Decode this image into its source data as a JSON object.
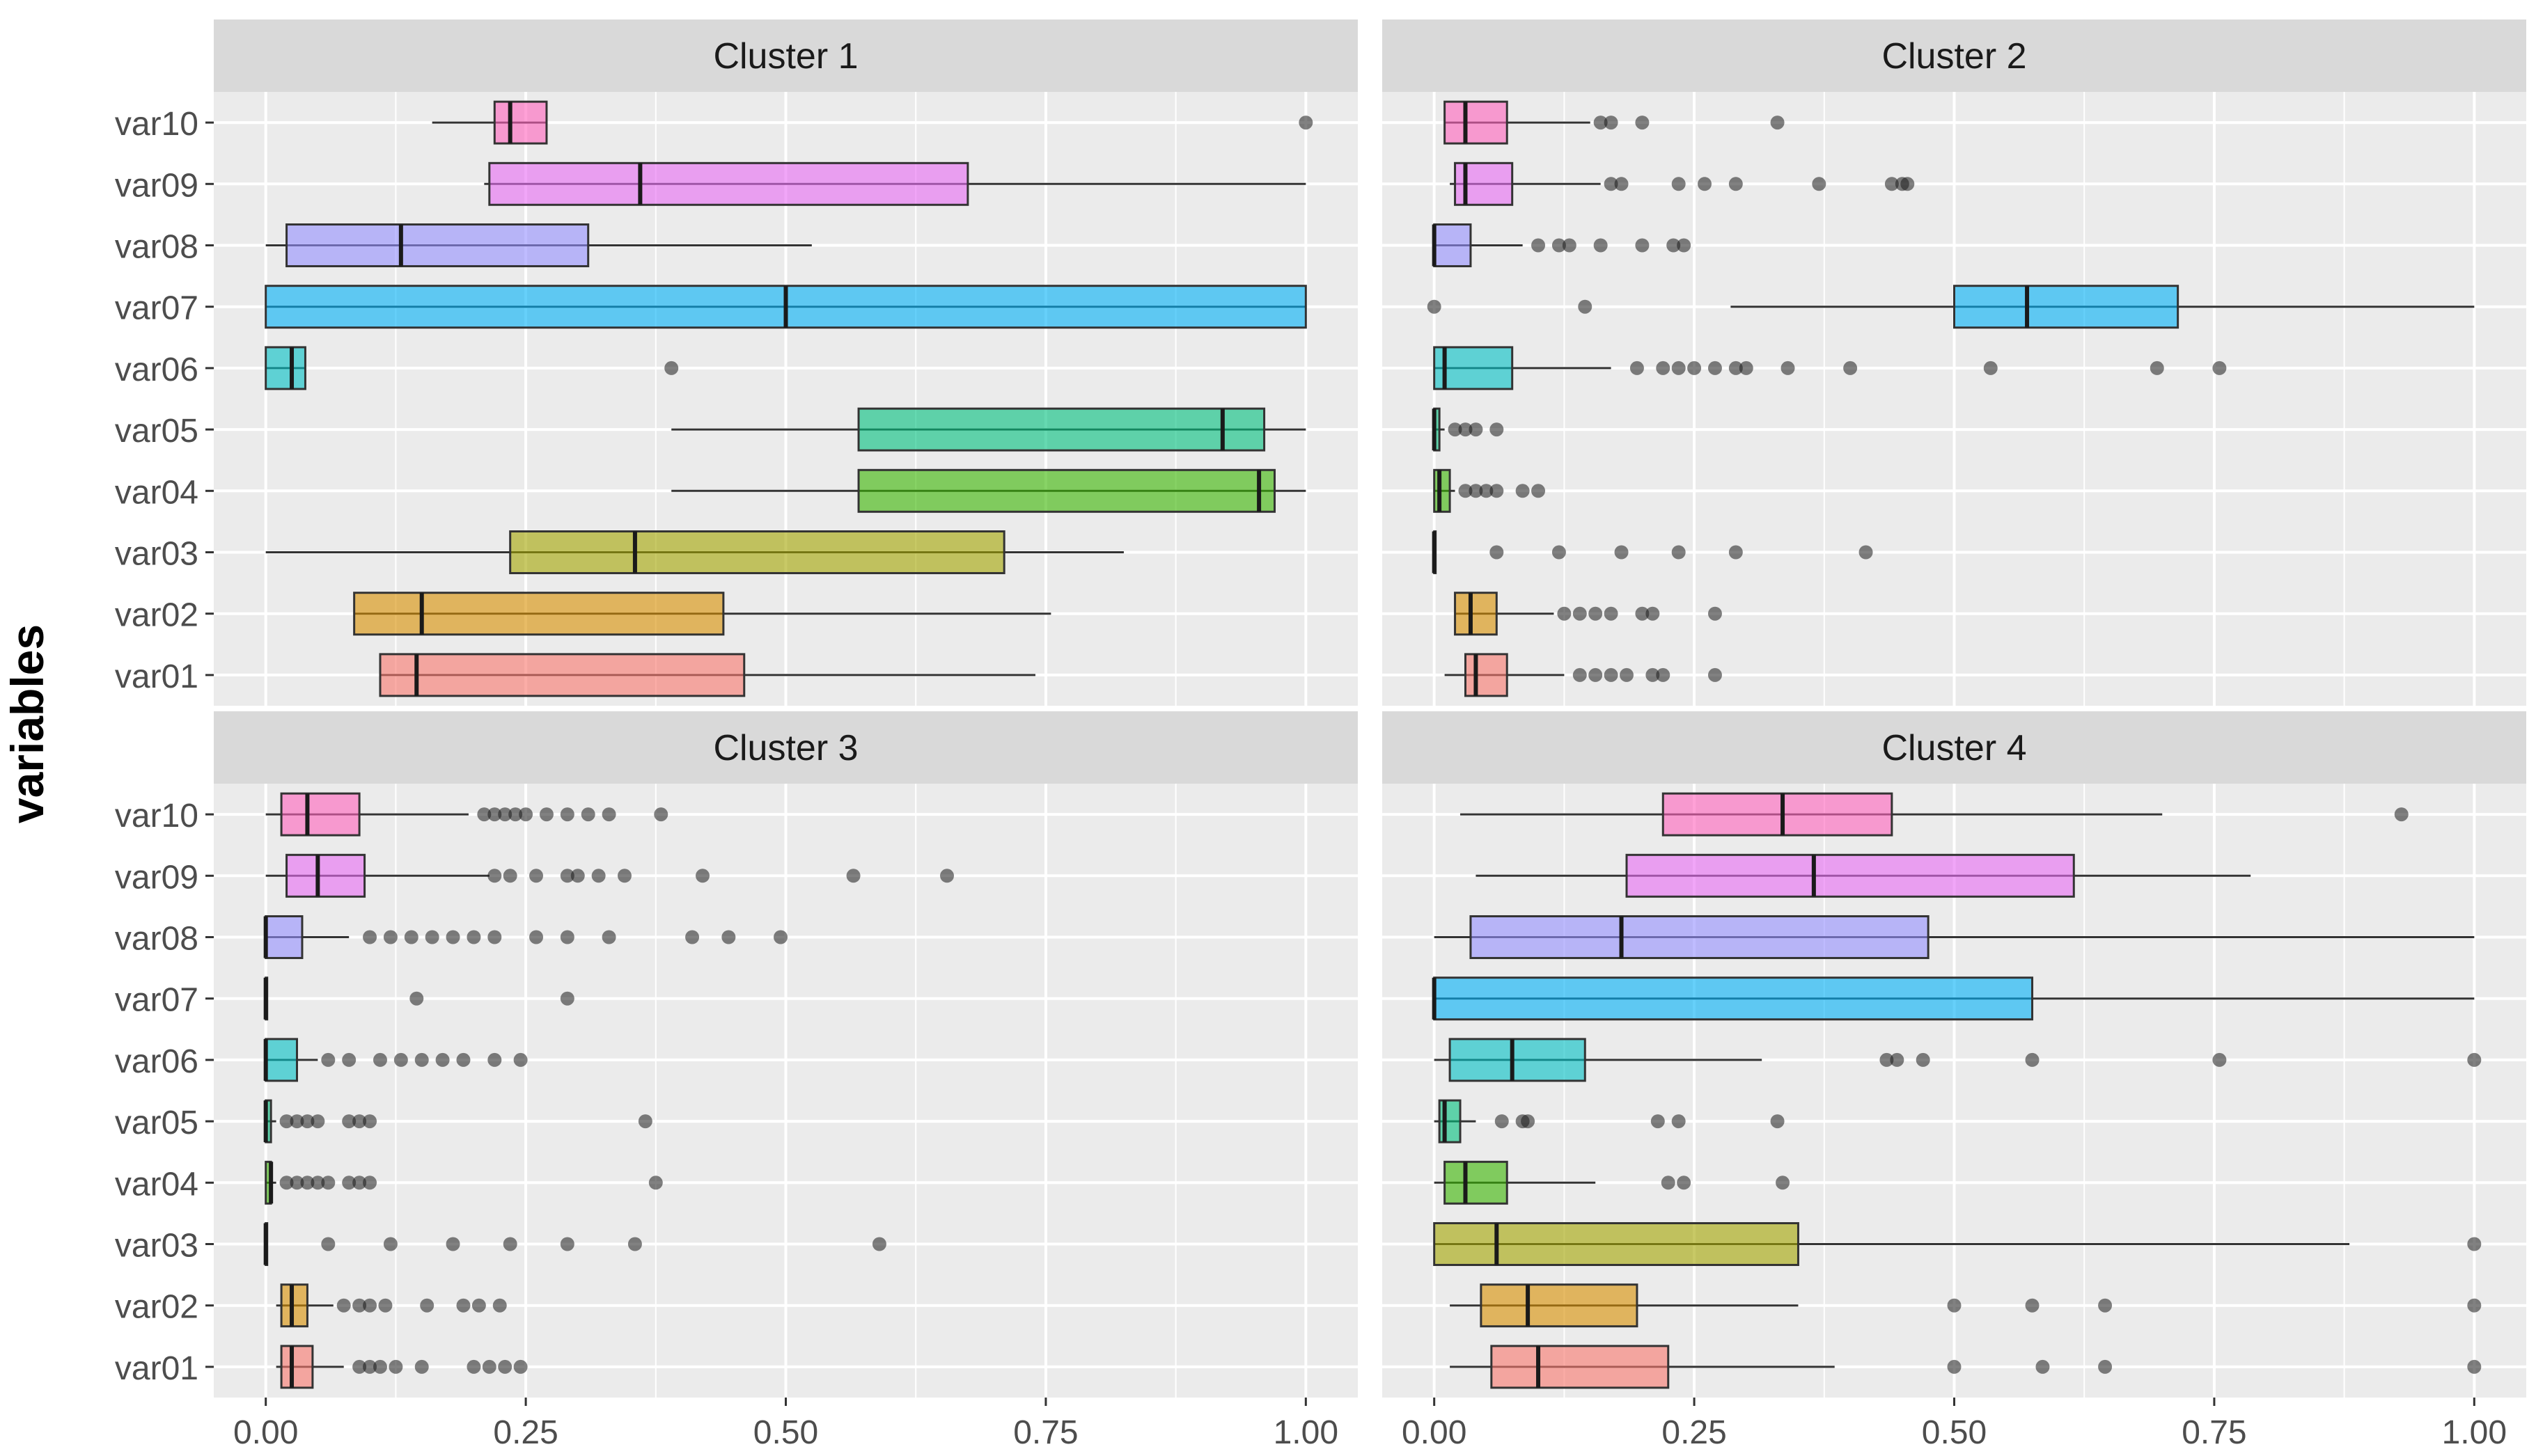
{
  "chart_data": {
    "type": "boxplot",
    "title": "",
    "ylabel": "variables",
    "xlabel": "",
    "xlim": [
      -0.05,
      1.05
    ],
    "x_ticks": [
      0,
      0.25,
      0.5,
      0.75,
      1
    ],
    "x_tick_labels": [
      "0.00",
      "0.25",
      "0.50",
      "0.75",
      "1.00"
    ],
    "variables": [
      "var10",
      "var09",
      "var08",
      "var07",
      "var06",
      "var05",
      "var04",
      "var03",
      "var02",
      "var01"
    ],
    "colors": {
      "var01": "#f8766d",
      "var02": "#d89000",
      "var03": "#a3a500",
      "var04": "#39b600",
      "var05": "#00bf7d",
      "var06": "#00bfc4",
      "var07": "#00b0f6",
      "var08": "#9590ff",
      "var09": "#e76bf3",
      "var10": "#ff62bc"
    },
    "panels": [
      {
        "title": "Cluster 1",
        "boxes": [
          {
            "var": "var10",
            "min": 0.16,
            "q1": 0.22,
            "median": 0.235,
            "q3": 0.27,
            "max": 0.27,
            "outliers": [
              1.0
            ]
          },
          {
            "var": "var09",
            "min": 0.21,
            "q1": 0.215,
            "median": 0.36,
            "q3": 0.675,
            "max": 1.0,
            "outliers": []
          },
          {
            "var": "var08",
            "min": 0.0,
            "q1": 0.02,
            "median": 0.13,
            "q3": 0.31,
            "max": 0.525,
            "outliers": []
          },
          {
            "var": "var07",
            "min": 0.0,
            "q1": 0.0,
            "median": 0.5,
            "q3": 1.0,
            "max": 1.0,
            "outliers": []
          },
          {
            "var": "var06",
            "min": 0.0,
            "q1": 0.0,
            "median": 0.025,
            "q3": 0.038,
            "max": 0.038,
            "outliers": [
              0.39
            ]
          },
          {
            "var": "var05",
            "min": 0.39,
            "q1": 0.57,
            "median": 0.92,
            "q3": 0.96,
            "max": 1.0,
            "outliers": []
          },
          {
            "var": "var04",
            "min": 0.39,
            "q1": 0.57,
            "median": 0.955,
            "q3": 0.97,
            "max": 1.0,
            "outliers": []
          },
          {
            "var": "var03",
            "min": 0.0,
            "q1": 0.235,
            "median": 0.355,
            "q3": 0.71,
            "max": 0.825,
            "outliers": []
          },
          {
            "var": "var02",
            "min": 0.085,
            "q1": 0.085,
            "median": 0.15,
            "q3": 0.44,
            "max": 0.755,
            "outliers": []
          },
          {
            "var": "var01",
            "min": 0.11,
            "q1": 0.11,
            "median": 0.145,
            "q3": 0.46,
            "max": 0.74,
            "outliers": []
          }
        ]
      },
      {
        "title": "Cluster 2",
        "boxes": [
          {
            "var": "var10",
            "min": 0.01,
            "q1": 0.01,
            "median": 0.03,
            "q3": 0.07,
            "max": 0.15,
            "outliers": [
              0.16,
              0.17,
              0.2,
              0.33
            ]
          },
          {
            "var": "var09",
            "min": 0.015,
            "q1": 0.02,
            "median": 0.03,
            "q3": 0.075,
            "max": 0.16,
            "outliers": [
              0.17,
              0.18,
              0.235,
              0.26,
              0.29,
              0.37,
              0.44,
              0.45,
              0.455
            ]
          },
          {
            "var": "var08",
            "min": 0.0,
            "q1": 0.0,
            "median": 0.0,
            "q3": 0.035,
            "max": 0.085,
            "outliers": [
              0.1,
              0.12,
              0.13,
              0.16,
              0.2,
              0.23,
              0.24
            ]
          },
          {
            "var": "var07",
            "min": 0.285,
            "q1": 0.5,
            "median": 0.57,
            "q3": 0.715,
            "max": 1.0,
            "outliers": [
              0.0,
              0.145
            ]
          },
          {
            "var": "var06",
            "min": 0.0,
            "q1": 0.0,
            "median": 0.01,
            "q3": 0.075,
            "max": 0.17,
            "outliers": [
              0.195,
              0.22,
              0.235,
              0.25,
              0.27,
              0.29,
              0.3,
              0.34,
              0.4,
              0.535,
              0.695,
              0.755
            ]
          },
          {
            "var": "var05",
            "min": 0.0,
            "q1": 0.0,
            "median": 0.0,
            "q3": 0.005,
            "max": 0.01,
            "outliers": [
              0.02,
              0.03,
              0.04,
              0.06
            ]
          },
          {
            "var": "var04",
            "min": 0.0,
            "q1": 0.0,
            "median": 0.005,
            "q3": 0.015,
            "max": 0.02,
            "outliers": [
              0.03,
              0.04,
              0.05,
              0.06,
              0.085,
              0.1
            ]
          },
          {
            "var": "var03",
            "min": 0.0,
            "q1": 0.0,
            "median": 0.0,
            "q3": 0.0,
            "max": 0.0,
            "outliers": [
              0.06,
              0.12,
              0.18,
              0.235,
              0.29,
              0.415
            ]
          },
          {
            "var": "var02",
            "min": 0.02,
            "q1": 0.02,
            "median": 0.035,
            "q3": 0.06,
            "max": 0.115,
            "outliers": [
              0.125,
              0.14,
              0.155,
              0.17,
              0.2,
              0.21,
              0.27
            ]
          },
          {
            "var": "var01",
            "min": 0.01,
            "q1": 0.03,
            "median": 0.04,
            "q3": 0.07,
            "max": 0.125,
            "outliers": [
              0.14,
              0.155,
              0.17,
              0.185,
              0.21,
              0.22,
              0.27
            ]
          }
        ]
      },
      {
        "title": "Cluster 3",
        "boxes": [
          {
            "var": "var10",
            "min": 0.0,
            "q1": 0.015,
            "median": 0.04,
            "q3": 0.09,
            "max": 0.195,
            "outliers": [
              0.21,
              0.22,
              0.23,
              0.24,
              0.25,
              0.27,
              0.29,
              0.31,
              0.33,
              0.38
            ]
          },
          {
            "var": "var09",
            "min": 0.0,
            "q1": 0.02,
            "median": 0.05,
            "q3": 0.095,
            "max": 0.215,
            "outliers": [
              0.22,
              0.235,
              0.26,
              0.29,
              0.3,
              0.32,
              0.345,
              0.42,
              0.565,
              0.655
            ]
          },
          {
            "var": "var08",
            "min": 0.0,
            "q1": 0.0,
            "median": 0.0,
            "q3": 0.035,
            "max": 0.08,
            "outliers": [
              0.1,
              0.12,
              0.14,
              0.16,
              0.18,
              0.2,
              0.22,
              0.26,
              0.29,
              0.33,
              0.41,
              0.445,
              0.495
            ]
          },
          {
            "var": "var07",
            "min": 0.0,
            "q1": 0.0,
            "median": 0.0,
            "q3": 0.0,
            "max": 0.0,
            "outliers": [
              0.145,
              0.29
            ]
          },
          {
            "var": "var06",
            "min": 0.0,
            "q1": 0.0,
            "median": 0.0,
            "q3": 0.03,
            "max": 0.05,
            "outliers": [
              0.06,
              0.08,
              0.11,
              0.13,
              0.15,
              0.17,
              0.19,
              0.22,
              0.245
            ]
          },
          {
            "var": "var05",
            "min": 0.0,
            "q1": 0.0,
            "median": 0.0,
            "q3": 0.005,
            "max": 0.01,
            "outliers": [
              0.02,
              0.03,
              0.04,
              0.05,
              0.08,
              0.09,
              0.1,
              0.365
            ]
          },
          {
            "var": "var04",
            "min": 0.0,
            "q1": 0.0,
            "median": 0.005,
            "q3": 0.005,
            "max": 0.01,
            "outliers": [
              0.02,
              0.03,
              0.04,
              0.05,
              0.06,
              0.08,
              0.09,
              0.1,
              0.375
            ]
          },
          {
            "var": "var03",
            "min": 0.0,
            "q1": 0.0,
            "median": 0.0,
            "q3": 0.0,
            "max": 0.0,
            "outliers": [
              0.06,
              0.12,
              0.18,
              0.235,
              0.29,
              0.355,
              0.59
            ]
          },
          {
            "var": "var02",
            "min": 0.01,
            "q1": 0.015,
            "median": 0.025,
            "q3": 0.04,
            "max": 0.065,
            "outliers": [
              0.075,
              0.09,
              0.1,
              0.115,
              0.155,
              0.19,
              0.205,
              0.225
            ]
          },
          {
            "var": "var01",
            "min": 0.01,
            "q1": 0.015,
            "median": 0.025,
            "q3": 0.045,
            "max": 0.075,
            "outliers": [
              0.09,
              0.1,
              0.11,
              0.125,
              0.15,
              0.2,
              0.215,
              0.23,
              0.245
            ]
          }
        ]
      },
      {
        "title": "Cluster 4",
        "boxes": [
          {
            "var": "var10",
            "min": 0.025,
            "q1": 0.22,
            "median": 0.335,
            "q3": 0.44,
            "max": 0.7,
            "outliers": [
              0.93
            ]
          },
          {
            "var": "var09",
            "min": 0.04,
            "q1": 0.185,
            "median": 0.365,
            "q3": 0.615,
            "max": 0.785,
            "outliers": []
          },
          {
            "var": "var08",
            "min": 0.0,
            "q1": 0.035,
            "median": 0.18,
            "q3": 0.475,
            "max": 1.0,
            "outliers": []
          },
          {
            "var": "var07",
            "min": 0.0,
            "q1": 0.0,
            "median": 0.0,
            "q3": 0.575,
            "max": 1.0,
            "outliers": []
          },
          {
            "var": "var06",
            "min": 0.0,
            "q1": 0.015,
            "median": 0.075,
            "q3": 0.145,
            "max": 0.315,
            "outliers": [
              0.435,
              0.445,
              0.47,
              0.575,
              0.755,
              1.0
            ]
          },
          {
            "var": "var05",
            "min": 0.0,
            "q1": 0.005,
            "median": 0.01,
            "q3": 0.025,
            "max": 0.04,
            "outliers": [
              0.065,
              0.085,
              0.09,
              0.215,
              0.235,
              0.33
            ]
          },
          {
            "var": "var04",
            "min": 0.0,
            "q1": 0.01,
            "median": 0.03,
            "q3": 0.07,
            "max": 0.155,
            "outliers": [
              0.225,
              0.24,
              0.335
            ]
          },
          {
            "var": "var03",
            "min": 0.0,
            "q1": 0.0,
            "median": 0.06,
            "q3": 0.35,
            "max": 0.88,
            "outliers": [
              1.0
            ]
          },
          {
            "var": "var02",
            "min": 0.015,
            "q1": 0.045,
            "median": 0.09,
            "q3": 0.195,
            "max": 0.35,
            "outliers": [
              0.5,
              0.575,
              0.645,
              1.0
            ]
          },
          {
            "var": "var01",
            "min": 0.015,
            "q1": 0.055,
            "median": 0.1,
            "q3": 0.225,
            "max": 0.385,
            "outliers": [
              0.5,
              0.585,
              0.645,
              1.0
            ]
          }
        ]
      }
    ]
  }
}
